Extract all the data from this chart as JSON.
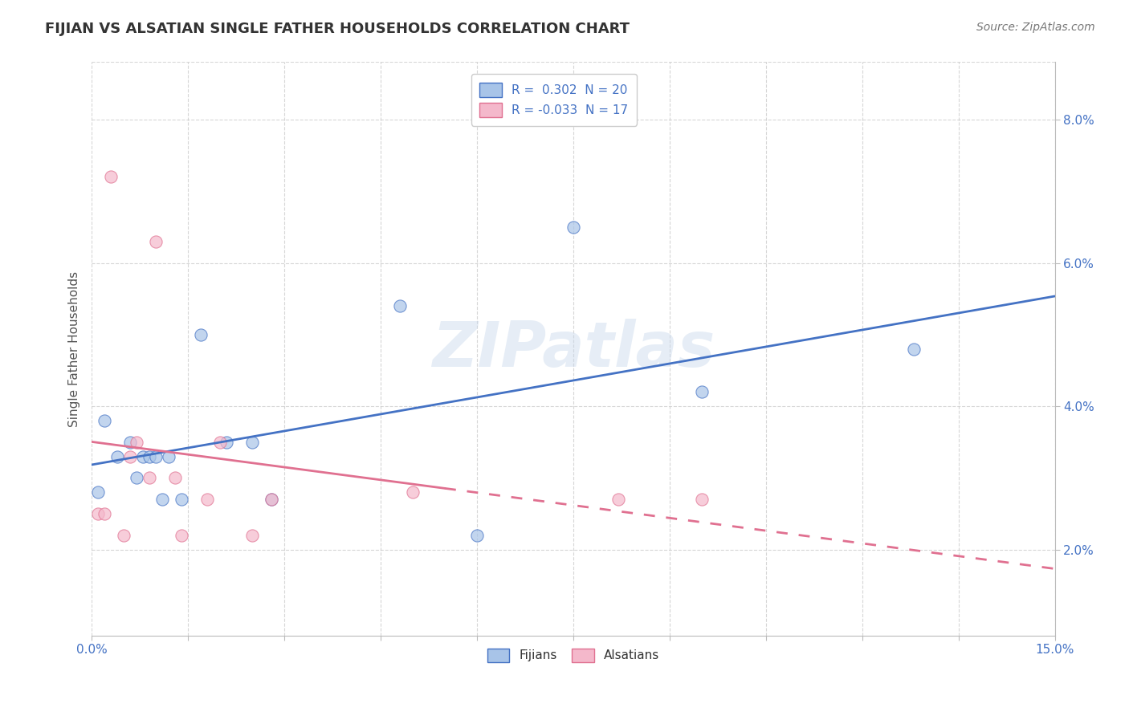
{
  "title": "FIJIAN VS ALSATIAN SINGLE FATHER HOUSEHOLDS CORRELATION CHART",
  "source": "Source: ZipAtlas.com",
  "xlim": [
    0.0,
    0.15
  ],
  "ylim": [
    0.008,
    0.088
  ],
  "ylabel": "Single Father Households",
  "fijian_color": "#a8c4e8",
  "alsatian_color": "#f4b8cb",
  "fijian_line_color": "#4472c4",
  "alsatian_line_color": "#e07090",
  "watermark": "ZIPatlas",
  "fijians_x": [
    0.001,
    0.002,
    0.004,
    0.006,
    0.007,
    0.008,
    0.009,
    0.01,
    0.011,
    0.012,
    0.014,
    0.017,
    0.021,
    0.025,
    0.028,
    0.048,
    0.06,
    0.075,
    0.095,
    0.128
  ],
  "fijians_y": [
    0.028,
    0.038,
    0.033,
    0.035,
    0.03,
    0.033,
    0.033,
    0.033,
    0.027,
    0.033,
    0.027,
    0.05,
    0.035,
    0.035,
    0.027,
    0.054,
    0.022,
    0.065,
    0.042,
    0.048
  ],
  "alsatians_x": [
    0.001,
    0.002,
    0.003,
    0.005,
    0.006,
    0.007,
    0.009,
    0.01,
    0.013,
    0.014,
    0.018,
    0.02,
    0.025,
    0.028,
    0.05,
    0.082,
    0.095
  ],
  "alsatians_y": [
    0.025,
    0.025,
    0.072,
    0.022,
    0.033,
    0.035,
    0.03,
    0.063,
    0.03,
    0.022,
    0.027,
    0.035,
    0.022,
    0.027,
    0.028,
    0.027,
    0.027
  ],
  "background_color": "#ffffff",
  "grid_color": "#cccccc",
  "xtick_positions": [
    0.0,
    0.015,
    0.03,
    0.045,
    0.06,
    0.075,
    0.09,
    0.105,
    0.12,
    0.135,
    0.15
  ],
  "ytick_positions": [
    0.02,
    0.04,
    0.06,
    0.08
  ],
  "ytick_labels": [
    "2.0%",
    "4.0%",
    "6.0%",
    "8.0%"
  ]
}
